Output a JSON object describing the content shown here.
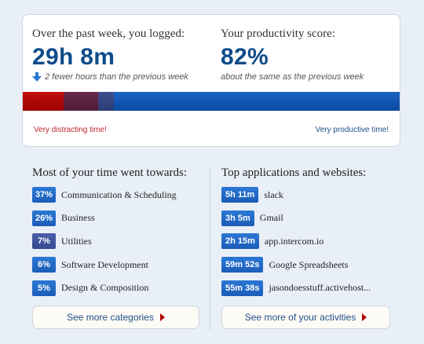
{
  "summary": {
    "logged_title": "Over the past week, you logged:",
    "logged_value": "29h 8m",
    "logged_note": "2 fewer hours than the previous week",
    "score_title": "Your productivity score:",
    "score_value": "82%",
    "score_note": "about the same as the previous week"
  },
  "productivity_bar": {
    "left_label": "Very distracting time!",
    "right_label": "Very productive time!",
    "colors": [
      "#c40f0f",
      "#6a2b48",
      "#3e4f8d",
      "#1a64c4"
    ]
  },
  "categories": {
    "title": "Most of your time went towards:",
    "items": [
      {
        "badge": "37%",
        "label": "Communication & Scheduling"
      },
      {
        "badge": "26%",
        "label": "Business"
      },
      {
        "badge": "7%",
        "label": "Utilities"
      },
      {
        "badge": "6%",
        "label": "Software Development"
      },
      {
        "badge": "5%",
        "label": "Design & Composition"
      }
    ],
    "more_label": "See more categories"
  },
  "applications": {
    "title": "Top applications and websites:",
    "items": [
      {
        "badge": "5h 11m",
        "label": "slack"
      },
      {
        "badge": "3h 5m",
        "label": "Gmail"
      },
      {
        "badge": "2h 15m",
        "label": "app.intercom.io"
      },
      {
        "badge": "59m 52s",
        "label": "Google Spreadsheets"
      },
      {
        "badge": "55m 38s",
        "label": "jasondoesstuff.activehost..."
      }
    ],
    "more_label": "See more of your activities"
  }
}
